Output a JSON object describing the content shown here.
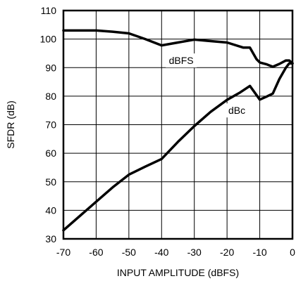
{
  "chart_data": {
    "type": "line",
    "xlabel": "INPUT AMPLITUDE (dBFS)",
    "ylabel": "SFDR (dB)",
    "xlim": [
      -70,
      0
    ],
    "ylim": [
      30,
      110
    ],
    "x_ticks": [
      -70,
      -60,
      -50,
      -40,
      -30,
      -20,
      -10,
      0
    ],
    "y_ticks": [
      30,
      40,
      50,
      60,
      70,
      80,
      90,
      100,
      110
    ],
    "x_tick_labels": [
      "-70",
      "-60",
      "-50",
      "-40",
      "-30",
      "-20",
      "-10",
      "0"
    ],
    "y_tick_labels": [
      "30",
      "40",
      "50",
      "60",
      "70",
      "80",
      "90",
      "100",
      "110"
    ],
    "grid": true,
    "series": [
      {
        "name": "dBFS",
        "x": [
          -70,
          -65,
          -60,
          -55,
          -50,
          -45,
          -40,
          -35,
          -30,
          -25,
          -20,
          -15,
          -13,
          -11,
          -10,
          -8,
          -6,
          -4,
          -2,
          -1,
          0
        ],
        "y": [
          103,
          103,
          103,
          102.6,
          102,
          100,
          97.8,
          98.8,
          99.8,
          99.3,
          98.8,
          97,
          97,
          93,
          91.8,
          91.2,
          90.3,
          91.3,
          92.5,
          92.5,
          91.5
        ]
      },
      {
        "name": "dBc",
        "x": [
          -70,
          -65,
          -60,
          -55,
          -50,
          -45,
          -40,
          -35,
          -30,
          -25,
          -20,
          -16,
          -13,
          -10,
          -8,
          -6,
          -4,
          -2,
          -1,
          0
        ],
        "y": [
          33,
          38,
          43,
          48,
          52.5,
          55.3,
          58,
          64,
          69.5,
          74.5,
          78.7,
          81.3,
          83.6,
          78.8,
          79.8,
          80.9,
          86,
          90,
          91.5,
          91.5
        ]
      }
    ],
    "series_labels": [
      {
        "text": "dBFS",
        "x": -34,
        "y": 92.5
      },
      {
        "text": "dBc",
        "x": -17,
        "y": 75
      }
    ]
  }
}
